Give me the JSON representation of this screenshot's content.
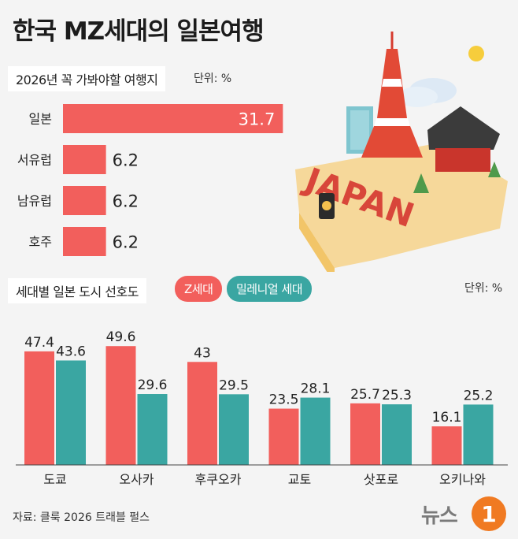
{
  "title": "한국 MZ세대의 일본여행",
  "section1": {
    "label": "2026년 꼭 가봐야할 여행지",
    "unit": "단위: %"
  },
  "section2": {
    "label": "세대별 일본 도시 선호도",
    "unit": "단위: %"
  },
  "source": "자료: 클룩 2026 트래블 펄스",
  "logo": {
    "text": "뉴스",
    "mark": "1"
  },
  "illustration": {
    "sign_text": "JAPAN"
  },
  "colors": {
    "z": "#f25f5c",
    "millennial": "#3aa6a2"
  },
  "chart_data": [
    {
      "type": "bar",
      "orientation": "horizontal",
      "categories": [
        "일본",
        "서유럽",
        "남유럽",
        "호주"
      ],
      "values": [
        31.7,
        6.2,
        6.2,
        6.2
      ],
      "xlim": [
        0,
        32
      ]
    },
    {
      "type": "bar",
      "categories": [
        "도쿄",
        "오사카",
        "후쿠오카",
        "교토",
        "삿포로",
        "오키나와"
      ],
      "series": [
        {
          "name": "Z세대",
          "values": [
            47.4,
            49.6,
            43,
            23.5,
            25.7,
            16.1
          ]
        },
        {
          "name": "밀레니얼 세대",
          "values": [
            43.6,
            29.6,
            29.5,
            28.1,
            25.3,
            25.2
          ]
        }
      ],
      "ylim": [
        0,
        50
      ]
    }
  ]
}
